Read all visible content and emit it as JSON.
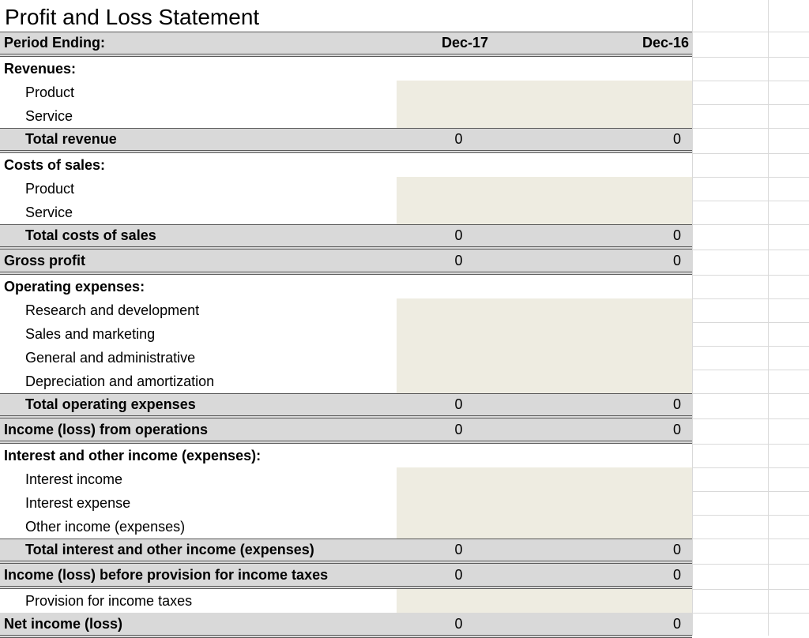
{
  "title": "Profit and Loss Statement",
  "header": {
    "label": "Period Ending:",
    "col1": "Dec-17",
    "col2": "Dec-16"
  },
  "rows": [
    {
      "label": "Revenues:",
      "type": "section"
    },
    {
      "label": "Product",
      "type": "input"
    },
    {
      "label": "Service",
      "type": "input"
    },
    {
      "label": "Total revenue",
      "type": "subtotal",
      "col1": "0",
      "col2": "0"
    },
    {
      "label": "Costs of sales:",
      "type": "section"
    },
    {
      "label": "Product",
      "type": "input"
    },
    {
      "label": "Service",
      "type": "input"
    },
    {
      "label": "Total costs of sales",
      "type": "subtotal",
      "col1": "0",
      "col2": "0"
    },
    {
      "label": "Gross profit",
      "type": "total",
      "col1": "0",
      "col2": "0"
    },
    {
      "label": "Operating expenses:",
      "type": "section"
    },
    {
      "label": "Research and development",
      "type": "input"
    },
    {
      "label": "Sales and marketing",
      "type": "input"
    },
    {
      "label": "General and administrative",
      "type": "input"
    },
    {
      "label": "Depreciation and amortization",
      "type": "input"
    },
    {
      "label": "Total operating expenses",
      "type": "subtotal",
      "col1": "0",
      "col2": "0"
    },
    {
      "label": "Income (loss) from operations",
      "type": "total",
      "col1": "0",
      "col2": "0"
    },
    {
      "label": "Interest and other income (expenses):",
      "type": "section"
    },
    {
      "label": "Interest income",
      "type": "input"
    },
    {
      "label": "Interest expense",
      "type": "input"
    },
    {
      "label": "Other income (expenses)",
      "type": "input"
    },
    {
      "label": "Total interest and other  income (expenses)",
      "type": "subtotal",
      "col1": "0",
      "col2": "0"
    },
    {
      "label": "Income (loss) before provision for income taxes",
      "type": "total",
      "col1": "0",
      "col2": "0"
    },
    {
      "label": "Provision for income taxes",
      "type": "input"
    },
    {
      "label": "Net income (loss)",
      "type": "total",
      "col1": "0",
      "col2": "0"
    }
  ]
}
